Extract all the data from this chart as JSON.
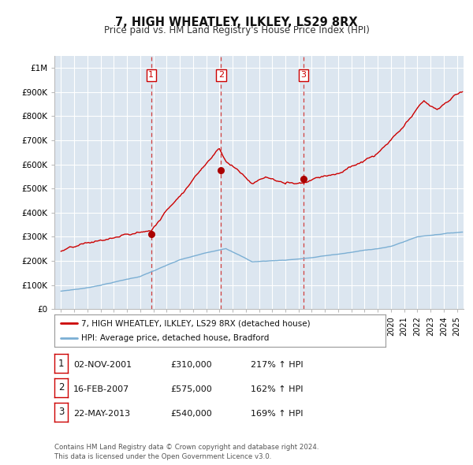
{
  "title": "7, HIGH WHEATLEY, ILKLEY, LS29 8RX",
  "subtitle": "Price paid vs. HM Land Registry's House Price Index (HPI)",
  "xlim": [
    1994.5,
    2025.5
  ],
  "ylim": [
    0,
    1050000
  ],
  "yticks": [
    0,
    100000,
    200000,
    300000,
    400000,
    500000,
    600000,
    700000,
    800000,
    900000,
    1000000
  ],
  "ytick_labels": [
    "£0",
    "£100K",
    "£200K",
    "£300K",
    "£400K",
    "£500K",
    "£600K",
    "£700K",
    "£800K",
    "£900K",
    "£1M"
  ],
  "xticks": [
    1995,
    1996,
    1997,
    1998,
    1999,
    2000,
    2001,
    2002,
    2003,
    2004,
    2005,
    2006,
    2007,
    2008,
    2009,
    2010,
    2011,
    2012,
    2013,
    2014,
    2015,
    2016,
    2017,
    2018,
    2019,
    2020,
    2021,
    2022,
    2023,
    2024,
    2025
  ],
  "sale_dates": [
    2001.836,
    2007.12,
    2013.385
  ],
  "sale_prices": [
    310000,
    575000,
    540000
  ],
  "sale_labels": [
    "1",
    "2",
    "3"
  ],
  "vline_color": "#d04040",
  "sale_dot_color": "#aa0000",
  "legend_label_red": "7, HIGH WHEATLEY, ILKLEY, LS29 8RX (detached house)",
  "legend_label_blue": "HPI: Average price, detached house, Bradford",
  "table_rows": [
    [
      "1",
      "02-NOV-2001",
      "£310,000",
      "217% ↑ HPI"
    ],
    [
      "2",
      "16-FEB-2007",
      "£575,000",
      "162% ↑ HPI"
    ],
    [
      "3",
      "22-MAY-2013",
      "£540,000",
      "169% ↑ HPI"
    ]
  ],
  "footnote": "Contains HM Land Registry data © Crown copyright and database right 2024.\nThis data is licensed under the Open Government Licence v3.0.",
  "bg_color": "#ffffff",
  "plot_bg_color": "#dce6f0",
  "grid_color": "#ffffff",
  "red_line_color": "#cc0000",
  "blue_line_color": "#7bafd4"
}
